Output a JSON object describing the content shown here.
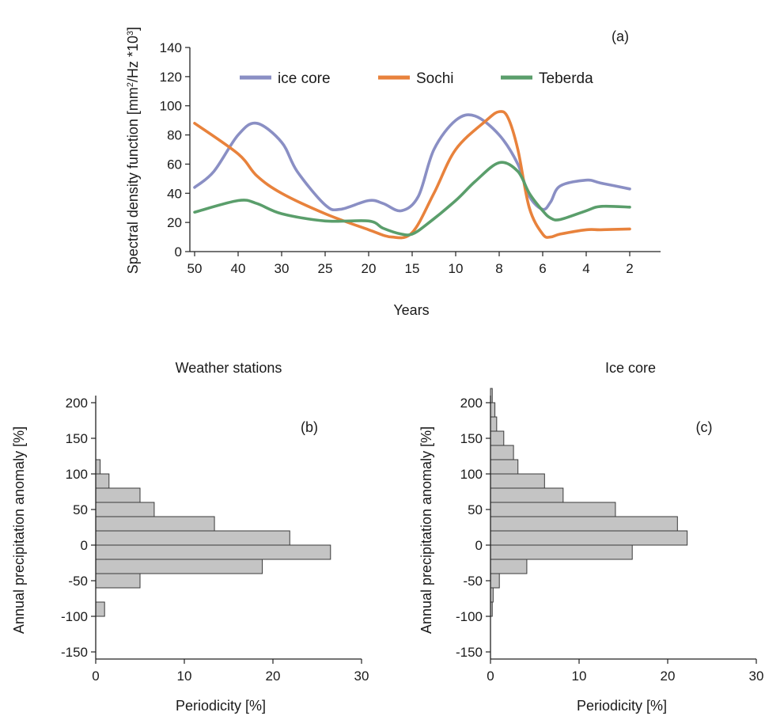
{
  "chart_data": [
    {
      "type": "line",
      "panel_label": "(a)",
      "title": "",
      "xlabel": "Years",
      "ylabel": "Spectral density function [mm²/Hz *10³]",
      "ylabel_parts": [
        "Spectral density function [mm",
        "2",
        "/Hz *10",
        "3",
        "]"
      ],
      "ylim": [
        0,
        140
      ],
      "yticks": [
        0,
        20,
        40,
        60,
        80,
        100,
        120,
        140
      ],
      "xticks": [
        "50",
        "40",
        "30",
        "25",
        "20",
        "15",
        "10",
        "8",
        "6",
        "4",
        "2"
      ],
      "x_scale": "reciprocal (frequency)",
      "grid": false,
      "legend_position": "top",
      "series": [
        {
          "name": "ice core",
          "color": "#8a8fc4",
          "points": [
            [
              50,
              44
            ],
            [
              45,
              55
            ],
            [
              40,
              80
            ],
            [
              35,
              88
            ],
            [
              30,
              75
            ],
            [
              28,
              55
            ],
            [
              25,
              32
            ],
            [
              23,
              29
            ],
            [
              20,
              35
            ],
            [
              18,
              33
            ],
            [
              16,
              28
            ],
            [
              14,
              38
            ],
            [
              12,
              70
            ],
            [
              10,
              90
            ],
            [
              9,
              93
            ],
            [
              8,
              80
            ],
            [
              7,
              60
            ],
            [
              6.5,
              38
            ],
            [
              6,
              29
            ],
            [
              5.5,
              34
            ],
            [
              5,
              45
            ],
            [
              4,
              49
            ],
            [
              3,
              47
            ],
            [
              2,
              43
            ]
          ]
        },
        {
          "name": "Sochi",
          "color": "#e8823c",
          "points": [
            [
              50,
              88
            ],
            [
              40,
              67
            ],
            [
              35,
              52
            ],
            [
              30,
              40
            ],
            [
              25,
              26
            ],
            [
              20,
              15
            ],
            [
              17,
              10
            ],
            [
              15,
              13
            ],
            [
              12,
              40
            ],
            [
              10,
              70
            ],
            [
              8.5,
              90
            ],
            [
              8,
              96
            ],
            [
              7.5,
              92
            ],
            [
              7,
              70
            ],
            [
              6.5,
              30
            ],
            [
              6,
              12
            ],
            [
              5.5,
              10
            ],
            [
              5,
              12
            ],
            [
              4,
              15
            ],
            [
              3,
              15
            ],
            [
              2,
              15.5
            ]
          ]
        },
        {
          "name": "Teberda",
          "color": "#5a9e6b",
          "points": [
            [
              50,
              27
            ],
            [
              40,
              35
            ],
            [
              35,
              33
            ],
            [
              30,
              26
            ],
            [
              25,
              21
            ],
            [
              20,
              21
            ],
            [
              18,
              16
            ],
            [
              16,
              12
            ],
            [
              15,
              12
            ],
            [
              13,
              18
            ],
            [
              10,
              35
            ],
            [
              9,
              48
            ],
            [
              8,
              61
            ],
            [
              7,
              55
            ],
            [
              6.5,
              40
            ],
            [
              6,
              28
            ],
            [
              5.5,
              23
            ],
            [
              5,
              22
            ],
            [
              4,
              28
            ],
            [
              3,
              31
            ],
            [
              2,
              30.5
            ]
          ]
        }
      ]
    },
    {
      "type": "bar",
      "orientation": "horizontal",
      "panel_label": "(b)",
      "title": "Weather stations",
      "xlabel": "Periodicity [%]",
      "ylabel": "Annual precipitation anomaly [%]",
      "xlim": [
        0,
        30
      ],
      "xticks": [
        0,
        10,
        20,
        30
      ],
      "ylim": [
        -160,
        210
      ],
      "yticks": [
        -150,
        -100,
        -50,
        0,
        50,
        100,
        150,
        200
      ],
      "bin_width": 20,
      "bins": [
        -90,
        -50,
        -30,
        -10,
        10,
        30,
        50,
        70,
        90,
        110,
        130
      ],
      "values": [
        1,
        5,
        18.8,
        26.5,
        21.9,
        13.4,
        6.6,
        5,
        1.5,
        0.5,
        0
      ]
    },
    {
      "type": "bar",
      "orientation": "horizontal",
      "panel_label": "(c)",
      "title": "Ice core",
      "xlabel": "Periodicity [%]",
      "ylabel": "Annual precipitation anomaly [%]",
      "xlim": [
        0,
        30
      ],
      "xticks": [
        0,
        10,
        20,
        30
      ],
      "ylim": [
        -160,
        210
      ],
      "yticks": [
        -150,
        -100,
        -50,
        0,
        50,
        100,
        150,
        200
      ],
      "bin_width": 20,
      "bins": [
        -90,
        -70,
        -50,
        -30,
        -10,
        10,
        30,
        50,
        70,
        90,
        110,
        130,
        150,
        170,
        190,
        210
      ],
      "values": [
        0.2,
        0.3,
        1,
        4.1,
        16,
        22.2,
        21.1,
        14.1,
        8.2,
        6.1,
        3.1,
        2.6,
        1.5,
        0.7,
        0.5,
        0.2
      ]
    }
  ]
}
